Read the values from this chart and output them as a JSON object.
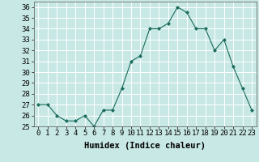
{
  "x": [
    0,
    1,
    2,
    3,
    4,
    5,
    6,
    7,
    8,
    9,
    10,
    11,
    12,
    13,
    14,
    15,
    16,
    17,
    18,
    19,
    20,
    21,
    22,
    23
  ],
  "y": [
    27,
    27,
    26,
    25.5,
    25.5,
    26,
    25,
    26.5,
    26.5,
    28.5,
    31,
    31.5,
    34,
    34,
    34.5,
    36,
    35.5,
    34,
    34,
    32,
    33,
    30.5,
    28.5,
    26.5
  ],
  "line_color": "#1a6b5a",
  "marker_color": "#1a6b5a",
  "bg_color": "#c8e8e5",
  "grid_color": "#ffffff",
  "xlabel": "Humidex (Indice chaleur)",
  "xlim": [
    -0.5,
    23.5
  ],
  "ylim": [
    25,
    36.5
  ],
  "yticks": [
    25,
    26,
    27,
    28,
    29,
    30,
    31,
    32,
    33,
    34,
    35,
    36
  ],
  "xticks": [
    0,
    1,
    2,
    3,
    4,
    5,
    6,
    7,
    8,
    9,
    10,
    11,
    12,
    13,
    14,
    15,
    16,
    17,
    18,
    19,
    20,
    21,
    22,
    23
  ],
  "xlabel_fontsize": 7.5,
  "tick_fontsize": 6.5
}
